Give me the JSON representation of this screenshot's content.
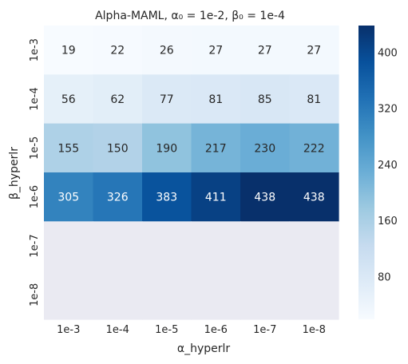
{
  "chart_data": {
    "type": "heatmap",
    "title": "Alpha-MAML, α₀ = 1e-2, β₀ = 1e-4",
    "xlabel": "α_hyperlr",
    "ylabel": "β_hyperlr",
    "x_categories": [
      "1e-3",
      "1e-4",
      "1e-5",
      "1e-6",
      "1e-7",
      "1e-8"
    ],
    "y_categories": [
      "1e-3",
      "1e-4",
      "1e-5",
      "1e-6",
      "1e-7",
      "1e-8"
    ],
    "values": [
      [
        19,
        22,
        26,
        27,
        27,
        27
      ],
      [
        56,
        62,
        77,
        81,
        85,
        81
      ],
      [
        155,
        150,
        190,
        217,
        230,
        222
      ],
      [
        305,
        326,
        383,
        411,
        438,
        438
      ],
      [
        null,
        null,
        null,
        null,
        null,
        null
      ],
      [
        null,
        null,
        null,
        null,
        null,
        null
      ]
    ],
    "colorbar": {
      "min": 19,
      "max": 438,
      "ticks": [
        "80",
        "160",
        "240",
        "320",
        "400"
      ],
      "colormap": "Blues"
    },
    "missing_color": "#eaeaf2"
  }
}
